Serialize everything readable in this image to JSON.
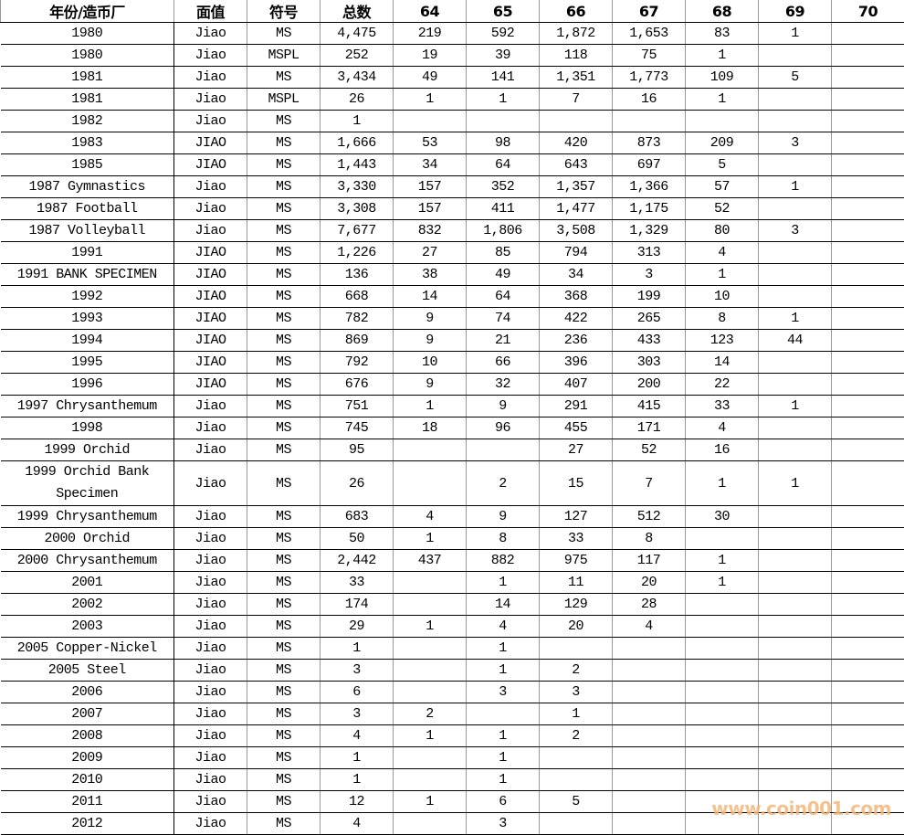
{
  "headers": [
    "年份/造币厂",
    "面值",
    "符号",
    "总数",
    "64",
    "65",
    "66",
    "67",
    "68",
    "69",
    "70"
  ],
  "rows": [
    [
      "1980",
      "Jiao",
      "MS",
      "4,475",
      "219",
      "592",
      "1,872",
      "1,653",
      "83",
      "1",
      ""
    ],
    [
      "1980",
      "Jiao",
      "MSPL",
      "252",
      "19",
      "39",
      "118",
      "75",
      "1",
      "",
      ""
    ],
    [
      "1981",
      "Jiao",
      "MS",
      "3,434",
      "49",
      "141",
      "1,351",
      "1,773",
      "109",
      "5",
      ""
    ],
    [
      "1981",
      "Jiao",
      "MSPL",
      "26",
      "1",
      "1",
      "7",
      "16",
      "1",
      "",
      ""
    ],
    [
      "1982",
      "Jiao",
      "MS",
      "1",
      "",
      "",
      "",
      "",
      "",
      "",
      ""
    ],
    [
      "1983",
      "JIAO",
      "MS",
      "1,666",
      "53",
      "98",
      "420",
      "873",
      "209",
      "3",
      ""
    ],
    [
      "1985",
      "JIAO",
      "MS",
      "1,443",
      "34",
      "64",
      "643",
      "697",
      "5",
      "",
      ""
    ],
    [
      "1987 Gymnastics",
      "Jiao",
      "MS",
      "3,330",
      "157",
      "352",
      "1,357",
      "1,366",
      "57",
      "1",
      ""
    ],
    [
      "1987 Football",
      "Jiao",
      "MS",
      "3,308",
      "157",
      "411",
      "1,477",
      "1,175",
      "52",
      "",
      ""
    ],
    [
      "1987 Volleyball",
      "Jiao",
      "MS",
      "7,677",
      "832",
      "1,806",
      "3,508",
      "1,329",
      "80",
      "3",
      ""
    ],
    [
      "1991",
      "JIAO",
      "MS",
      "1,226",
      "27",
      "85",
      "794",
      "313",
      "4",
      "",
      ""
    ],
    [
      "1991 BANK SPECIMEN",
      "JIAO",
      "MS",
      "136",
      "38",
      "49",
      "34",
      "3",
      "1",
      "",
      ""
    ],
    [
      "1992",
      "JIAO",
      "MS",
      "668",
      "14",
      "64",
      "368",
      "199",
      "10",
      "",
      ""
    ],
    [
      "1993",
      "JIAO",
      "MS",
      "782",
      "9",
      "74",
      "422",
      "265",
      "8",
      "1",
      ""
    ],
    [
      "1994",
      "JIAO",
      "MS",
      "869",
      "9",
      "21",
      "236",
      "433",
      "123",
      "44",
      ""
    ],
    [
      "1995",
      "JIAO",
      "MS",
      "792",
      "10",
      "66",
      "396",
      "303",
      "14",
      "",
      ""
    ],
    [
      "1996",
      "JIAO",
      "MS",
      "676",
      "9",
      "32",
      "407",
      "200",
      "22",
      "",
      ""
    ],
    [
      "1997 Chrysanthemum",
      "Jiao",
      "MS",
      "751",
      "1",
      "9",
      "291",
      "415",
      "33",
      "1",
      ""
    ],
    [
      "1998",
      "Jiao",
      "MS",
      "745",
      "18",
      "96",
      "455",
      "171",
      "4",
      "",
      ""
    ],
    [
      "1999 Orchid",
      "Jiao",
      "MS",
      "95",
      "",
      "",
      "27",
      "52",
      "16",
      "",
      ""
    ],
    [
      "1999 Orchid Bank Specimen",
      "Jiao",
      "MS",
      "26",
      "",
      "2",
      "15",
      "7",
      "1",
      "1",
      ""
    ],
    [
      "1999 Chrysanthemum",
      "Jiao",
      "MS",
      "683",
      "4",
      "9",
      "127",
      "512",
      "30",
      "",
      ""
    ],
    [
      "2000 Orchid",
      "Jiao",
      "MS",
      "50",
      "1",
      "8",
      "33",
      "8",
      "",
      "",
      ""
    ],
    [
      "2000 Chrysanthemum",
      "Jiao",
      "MS",
      "2,442",
      "437",
      "882",
      "975",
      "117",
      "1",
      "",
      ""
    ],
    [
      "2001",
      "Jiao",
      "MS",
      "33",
      "",
      "1",
      "11",
      "20",
      "1",
      "",
      ""
    ],
    [
      "2002",
      "Jiao",
      "MS",
      "174",
      "",
      "14",
      "129",
      "28",
      "",
      "",
      ""
    ],
    [
      "2003",
      "Jiao",
      "MS",
      "29",
      "1",
      "4",
      "20",
      "4",
      "",
      "",
      ""
    ],
    [
      "2005 Copper-Nickel",
      "Jiao",
      "MS",
      "1",
      "",
      "1",
      "",
      "",
      "",
      "",
      ""
    ],
    [
      "2005 Steel",
      "Jiao",
      "MS",
      "3",
      "",
      "1",
      "2",
      "",
      "",
      "",
      ""
    ],
    [
      "2006",
      "Jiao",
      "MS",
      "6",
      "",
      "3",
      "3",
      "",
      "",
      "",
      ""
    ],
    [
      "2007",
      "Jiao",
      "MS",
      "3",
      "2",
      "",
      "1",
      "",
      "",
      "",
      ""
    ],
    [
      "2008",
      "Jiao",
      "MS",
      "4",
      "1",
      "1",
      "2",
      "",
      "",
      "",
      ""
    ],
    [
      "2009",
      "Jiao",
      "MS",
      "1",
      "",
      "1",
      "",
      "",
      "",
      "",
      ""
    ],
    [
      "2010",
      "Jiao",
      "MS",
      "1",
      "",
      "1",
      "",
      "",
      "",
      "",
      ""
    ],
    [
      "2011",
      "Jiao",
      "MS",
      "12",
      "1",
      "6",
      "5",
      "",
      "",
      "",
      ""
    ],
    [
      "2012",
      "Jiao",
      "MS",
      "4",
      "",
      "3",
      "",
      "",
      "",
      "",
      ""
    ]
  ],
  "watermark": "www.coin001.com"
}
